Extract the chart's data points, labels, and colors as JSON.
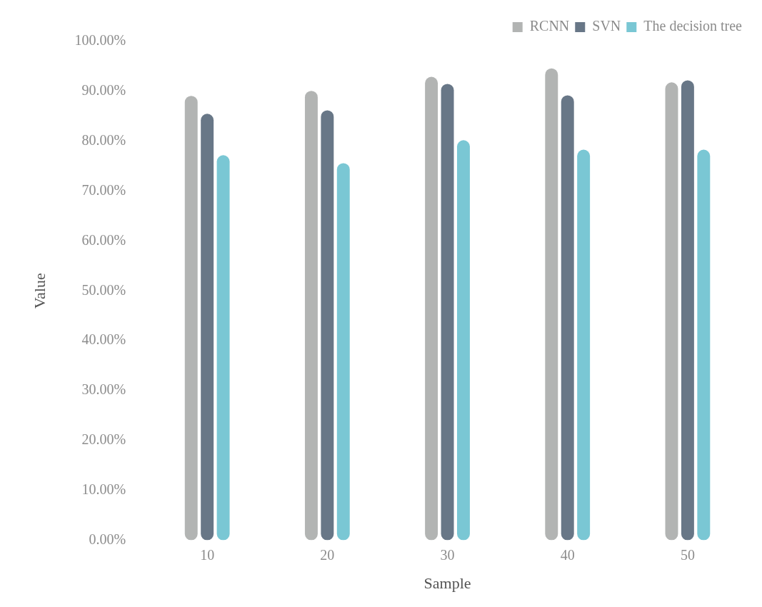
{
  "chart_data": {
    "type": "bar",
    "xlabel": "Sample",
    "ylabel": "Value",
    "categories": [
      "10",
      "20",
      "30",
      "40",
      "50"
    ],
    "series": [
      {
        "name": "RCNN",
        "color": "#b2b4b3",
        "values": [
          89.1,
          90.1,
          92.9,
          94.6,
          91.8
        ]
      },
      {
        "name": "SVN",
        "color": "#687787",
        "values": [
          85.5,
          86.2,
          91.5,
          89.2,
          92.2
        ]
      },
      {
        "name": "The decision tree",
        "color": "#7ac7d4",
        "values": [
          77.2,
          75.6,
          80.2,
          78.3,
          78.3
        ]
      }
    ],
    "ylim": [
      0,
      100
    ],
    "yticks": [
      {
        "value": 0,
        "label": "0.00%"
      },
      {
        "value": 10,
        "label": "10.00%"
      },
      {
        "value": 20,
        "label": "20.00%"
      },
      {
        "value": 30,
        "label": "30.00%"
      },
      {
        "value": 40,
        "label": "40.00%"
      },
      {
        "value": 50,
        "label": "50.00%"
      },
      {
        "value": 60,
        "label": "60.00%"
      },
      {
        "value": 70,
        "label": "70.00%"
      },
      {
        "value": 80,
        "label": "80.00%"
      },
      {
        "value": 90,
        "label": "90.00%"
      },
      {
        "value": 100,
        "label": "100.00%"
      }
    ],
    "grid": false,
    "legend": "top right"
  }
}
